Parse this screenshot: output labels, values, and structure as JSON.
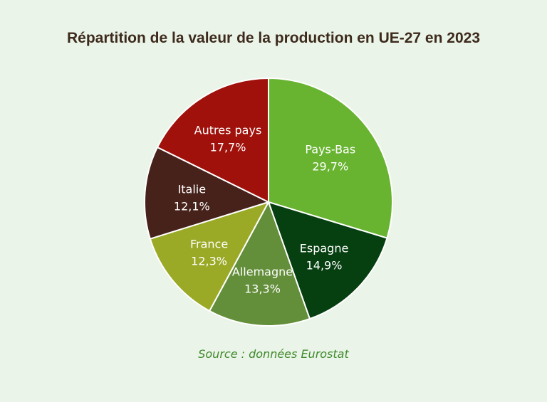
{
  "chart_data": {
    "type": "pie",
    "title": "Répartition de la valeur de la production en UE-27 en 2023",
    "source": "Source : données Eurostat",
    "slices": [
      {
        "label": "Pays-Bas",
        "value": 29.7,
        "value_label": "29,7%",
        "color": "#68b430"
      },
      {
        "label": "Espagne",
        "value": 14.9,
        "value_label": "14,9%",
        "color": "#063f10"
      },
      {
        "label": "Allemagne",
        "value": 13.3,
        "value_label": "13,3%",
        "color": "#638e3a"
      },
      {
        "label": "France",
        "value": 12.3,
        "value_label": "12,3%",
        "color": "#9aaa26"
      },
      {
        "label": "Italie",
        "value": 12.1,
        "value_label": "12,1%",
        "color": "#47221a"
      },
      {
        "label": "Autres pays",
        "value": 17.7,
        "value_label": "17,7%",
        "color": "#a0110b"
      }
    ],
    "start_angle": "top",
    "direction": "clockwise",
    "slice_border_color": "#ffffff"
  }
}
